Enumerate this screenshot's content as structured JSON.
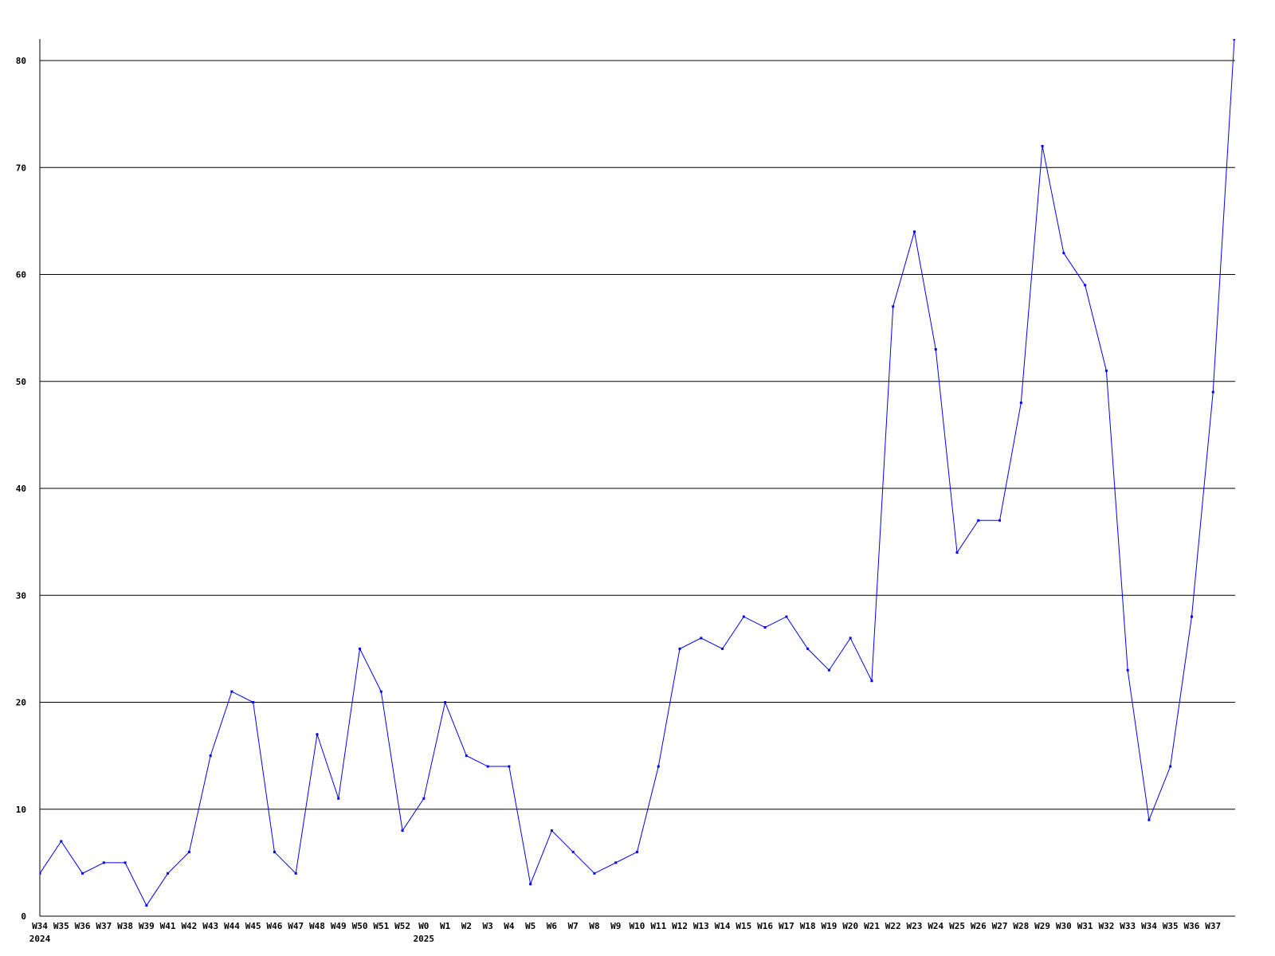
{
  "chart_data": {
    "type": "line",
    "title": "",
    "xlabel": "",
    "ylabel": "",
    "ylim": [
      0,
      80
    ],
    "yticks": [
      0,
      10,
      20,
      30,
      40,
      50,
      60,
      70,
      80
    ],
    "grid": "horizontal",
    "line_color": "#0000ff",
    "grid_color": "#000000",
    "categories": [
      "W34",
      "W35",
      "W36",
      "W37",
      "W38",
      "W39",
      "W41",
      "W42",
      "W43",
      "W44",
      "W45",
      "W46",
      "W47",
      "W48",
      "W49",
      "W50",
      "W51",
      "W52",
      "W0",
      "W1",
      "W2",
      "W3",
      "W4",
      "W5",
      "W6",
      "W7",
      "W8",
      "W9",
      "W10",
      "W11",
      "W12",
      "W13",
      "W14",
      "W15",
      "W16",
      "W17",
      "W18",
      "W19",
      "W20",
      "W21",
      "W22",
      "W23",
      "W24",
      "W25",
      "W26",
      "W27",
      "W28",
      "W29",
      "W30",
      "W31",
      "W32",
      "W33",
      "W34",
      "W35",
      "W36",
      "W37",
      ""
    ],
    "year_labels": [
      {
        "index": 0,
        "label": "2024"
      },
      {
        "index": 18,
        "label": "2025"
      }
    ],
    "values": [
      4,
      7,
      4,
      5,
      5,
      1,
      4,
      6,
      15,
      21,
      20,
      6,
      4,
      17,
      11,
      25,
      21,
      8,
      11,
      20,
      15,
      14,
      14,
      3,
      8,
      6,
      4,
      5,
      6,
      14,
      25,
      26,
      25,
      28,
      27,
      28,
      25,
      23,
      26,
      22,
      57,
      64,
      53,
      34,
      37,
      37,
      48,
      72,
      62,
      59,
      51,
      23,
      9,
      14,
      28,
      49,
      82
    ]
  }
}
